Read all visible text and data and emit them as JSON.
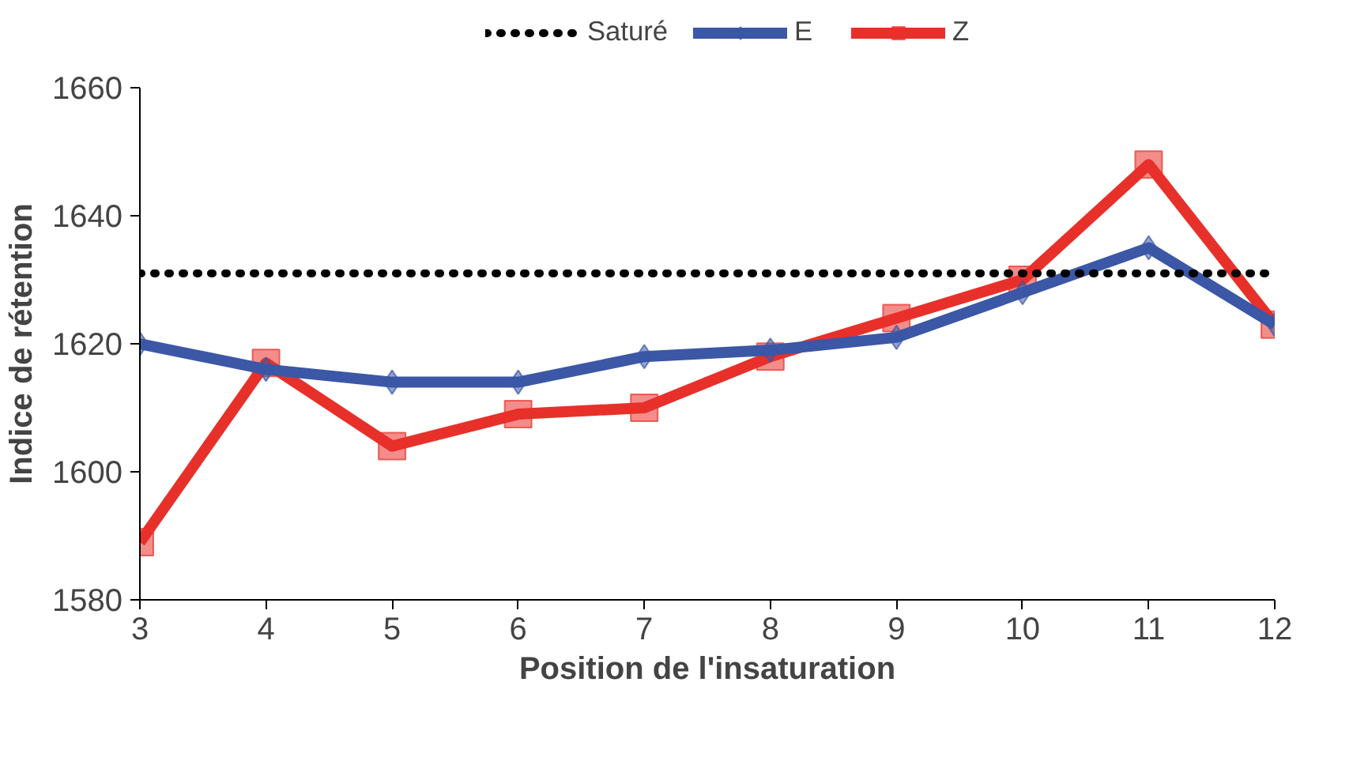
{
  "chart_data": {
    "type": "line",
    "xlabel": "Position de l'insaturation",
    "ylabel": "Indice de rétention",
    "x": [
      3,
      4,
      5,
      6,
      7,
      8,
      9,
      10,
      11,
      12
    ],
    "series": [
      {
        "name": "Saturé",
        "color": "#000000",
        "values": [
          1631,
          1631,
          1631,
          1631,
          1631,
          1631,
          1631,
          1631,
          1631,
          1631
        ],
        "marker": "none",
        "line_style": "dotted"
      },
      {
        "name": "E",
        "color": "#3b57a6",
        "values": [
          1620,
          1616,
          1614,
          1614,
          1618,
          1619,
          1621,
          1628,
          1635,
          1623
        ],
        "marker": "diamond",
        "line_style": "solid"
      },
      {
        "name": "Z",
        "color": "#e8302a",
        "values": [
          1589,
          1617,
          1604,
          1609,
          1610,
          1618,
          1624,
          1630,
          1648,
          1623
        ],
        "marker": "square",
        "line_style": "solid"
      }
    ],
    "xlim": [
      3,
      12
    ],
    "xticks": [
      3,
      4,
      5,
      6,
      7,
      8,
      9,
      10,
      11,
      12
    ],
    "ylim": [
      1580,
      1660
    ],
    "yticks": [
      1580,
      1600,
      1620,
      1640,
      1660
    ],
    "grid": false,
    "legend": "top"
  }
}
